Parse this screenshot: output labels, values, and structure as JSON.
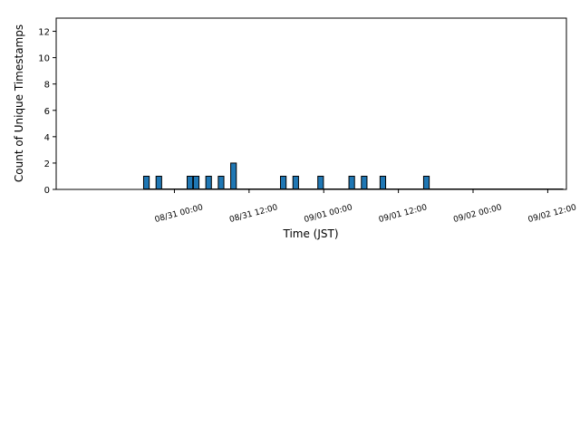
{
  "chart_data": {
    "type": "bar",
    "title": "",
    "xlabel": "Time (JST)",
    "ylabel": "Count of Unique Timestamps",
    "ylim": [
      0,
      13
    ],
    "yticks": [
      0,
      2,
      4,
      6,
      8,
      10,
      12
    ],
    "xlim": [
      "08/30 05:00",
      "09/02 15:00"
    ],
    "xticks": [
      {
        "value": "08/31 00:00",
        "label": "08/31 00:00"
      },
      {
        "value": "08/31 12:00",
        "label": "08/31 12:00"
      },
      {
        "value": "09/01 00:00",
        "label": "09/01 00:00"
      },
      {
        "value": "09/01 12:00",
        "label": "09/01 12:00"
      },
      {
        "value": "09/02 00:00",
        "label": "09/02 00:00"
      },
      {
        "value": "09/02 12:00",
        "label": "09/02 12:00"
      }
    ],
    "bar_color": "#1f77b4",
    "bars": [
      {
        "x": "08/30 19:30",
        "value": 1
      },
      {
        "x": "08/30 21:30",
        "value": 1
      },
      {
        "x": "08/31 02:30",
        "value": 1
      },
      {
        "x": "08/31 03:30",
        "value": 1
      },
      {
        "x": "08/31 05:30",
        "value": 1
      },
      {
        "x": "08/31 07:30",
        "value": 1
      },
      {
        "x": "08/31 09:30",
        "value": 2
      },
      {
        "x": "08/31 17:30",
        "value": 1
      },
      {
        "x": "08/31 19:30",
        "value": 1
      },
      {
        "x": "08/31 23:30",
        "value": 1
      },
      {
        "x": "09/01 04:30",
        "value": 1
      },
      {
        "x": "09/01 06:30",
        "value": 1
      },
      {
        "x": "09/01 09:30",
        "value": 1
      },
      {
        "x": "09/01 16:30",
        "value": 1
      }
    ],
    "grid": false,
    "legend": "none"
  }
}
